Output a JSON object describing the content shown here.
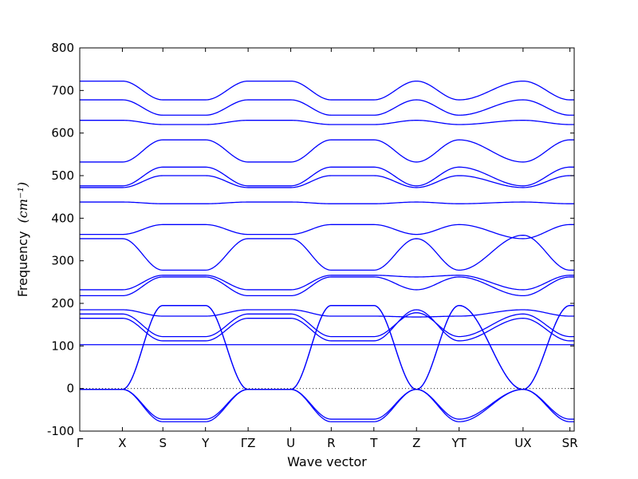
{
  "chart_data": {
    "type": "line",
    "xlabel": "Wave vector",
    "ylabel": "Frequency",
    "ylabel_unit": "(cm⁻¹)",
    "ylim": [
      -100,
      800
    ],
    "yticks": [
      -100,
      0,
      100,
      200,
      300,
      400,
      500,
      600,
      700,
      800
    ],
    "xlim": [
      0,
      11.6
    ],
    "xticks": [
      {
        "x": 0.0,
        "label": "Γ"
      },
      {
        "x": 1.0,
        "label": "X"
      },
      {
        "x": 1.95,
        "label": "S"
      },
      {
        "x": 2.95,
        "label": "Y"
      },
      {
        "x": 3.95,
        "label": "ΓZ"
      },
      {
        "x": 4.95,
        "label": "U"
      },
      {
        "x": 5.9,
        "label": "R"
      },
      {
        "x": 6.9,
        "label": "T"
      },
      {
        "x": 7.9,
        "label": "Z"
      },
      {
        "x": 8.9,
        "label": "YT"
      },
      {
        "x": 10.4,
        "label": "UX"
      },
      {
        "x": 11.5,
        "label": "SR"
      }
    ],
    "zero_line": {
      "y": 0,
      "style": "dotted"
    },
    "grid": false,
    "line_color": "#0000ff",
    "segment_bounds": [
      0,
      1.0,
      1.95,
      2.95,
      3.95,
      4.95,
      5.9,
      6.9,
      7.9,
      8.9,
      10.4,
      11.5,
      11.6
    ],
    "series": [
      {
        "values": [
          -2,
          -2,
          -78,
          -78,
          -2,
          -2,
          -78,
          -78,
          -2,
          -78,
          -2,
          -78,
          -78
        ]
      },
      {
        "values": [
          -2,
          -2,
          -72,
          -72,
          -2,
          -2,
          -72,
          -72,
          -2,
          -72,
          -2,
          -72,
          -72
        ]
      },
      {
        "values": [
          -2,
          -2,
          195,
          195,
          -2,
          -2,
          195,
          195,
          -2,
          195,
          -2,
          195,
          195
        ]
      },
      {
        "values": [
          -2,
          -2,
          195,
          195,
          -2,
          -2,
          195,
          195,
          -2,
          195,
          -2,
          195,
          195
        ]
      },
      {
        "values": [
          103,
          103,
          103,
          103,
          103,
          103,
          103,
          103,
          103,
          103,
          103,
          103,
          103
        ]
      },
      {
        "values": [
          165,
          165,
          112,
          112,
          165,
          165,
          112,
          112,
          185,
          112,
          165,
          112,
          112
        ]
      },
      {
        "values": [
          175,
          175,
          122,
          122,
          175,
          175,
          122,
          122,
          178,
          122,
          175,
          122,
          122
        ]
      },
      {
        "values": [
          185,
          185,
          170,
          170,
          185,
          185,
          170,
          170,
          168,
          170,
          185,
          170,
          170
        ]
      },
      {
        "values": [
          218,
          218,
          262,
          262,
          218,
          218,
          262,
          262,
          232,
          262,
          218,
          262,
          262
        ]
      },
      {
        "values": [
          232,
          232,
          266,
          266,
          232,
          232,
          266,
          266,
          262,
          266,
          232,
          266,
          266
        ]
      },
      {
        "values": [
          352,
          352,
          278,
          278,
          352,
          352,
          278,
          278,
          352,
          278,
          360,
          278,
          278
        ]
      },
      {
        "values": [
          362,
          362,
          385,
          385,
          362,
          362,
          385,
          385,
          362,
          385,
          352,
          385,
          385
        ]
      },
      {
        "values": [
          438,
          438,
          434,
          434,
          438,
          438,
          434,
          434,
          438,
          434,
          438,
          434,
          434
        ]
      },
      {
        "values": [
          472,
          472,
          500,
          500,
          472,
          472,
          500,
          500,
          472,
          500,
          472,
          500,
          500
        ]
      },
      {
        "values": [
          476,
          476,
          520,
          520,
          476,
          476,
          520,
          520,
          476,
          520,
          476,
          520,
          520
        ]
      },
      {
        "values": [
          532,
          532,
          584,
          584,
          532,
          532,
          584,
          584,
          532,
          584,
          532,
          584,
          584
        ]
      },
      {
        "values": [
          630,
          630,
          620,
          620,
          630,
          630,
          620,
          620,
          630,
          620,
          630,
          620,
          620
        ]
      },
      {
        "values": [
          678,
          678,
          642,
          642,
          678,
          678,
          642,
          642,
          678,
          642,
          678,
          642,
          642
        ]
      },
      {
        "values": [
          722,
          722,
          678,
          678,
          722,
          722,
          678,
          678,
          722,
          678,
          722,
          678,
          678
        ]
      }
    ]
  }
}
